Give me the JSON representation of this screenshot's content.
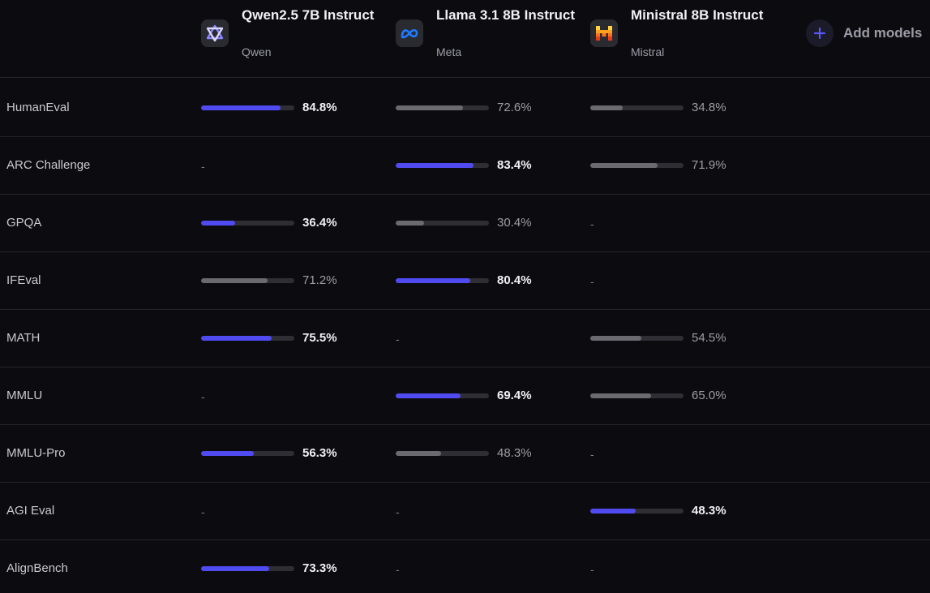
{
  "models": [
    {
      "name": "Qwen2.5 7B Instruct",
      "org": "Qwen",
      "logo_icon": "qwen-logo-icon"
    },
    {
      "name": "Llama 3.1 8B Instruct",
      "org": "Meta",
      "logo_icon": "meta-logo-icon"
    },
    {
      "name": "Ministral 8B Instruct",
      "org": "Mistral",
      "logo_icon": "mistral-logo-icon"
    }
  ],
  "add_models": {
    "label": "Add models",
    "icon": "plus-icon"
  },
  "colors": {
    "best_bar": "#4f4bf0",
    "normal_bar": "#6a6a70",
    "track": "#2e2e34"
  },
  "benchmarks": [
    {
      "name": "HumanEval",
      "scores": [
        {
          "value": 84.8,
          "label": "84.8%",
          "best": true
        },
        {
          "value": 72.6,
          "label": "72.6%",
          "best": false
        },
        {
          "value": 34.8,
          "label": "34.8%",
          "best": false
        }
      ]
    },
    {
      "name": "ARC Challenge",
      "scores": [
        null,
        {
          "value": 83.4,
          "label": "83.4%",
          "best": true
        },
        {
          "value": 71.9,
          "label": "71.9%",
          "best": false
        }
      ]
    },
    {
      "name": "GPQA",
      "scores": [
        {
          "value": 36.4,
          "label": "36.4%",
          "best": true
        },
        {
          "value": 30.4,
          "label": "30.4%",
          "best": false
        },
        null
      ]
    },
    {
      "name": "IFEval",
      "scores": [
        {
          "value": 71.2,
          "label": "71.2%",
          "best": false
        },
        {
          "value": 80.4,
          "label": "80.4%",
          "best": true
        },
        null
      ]
    },
    {
      "name": "MATH",
      "scores": [
        {
          "value": 75.5,
          "label": "75.5%",
          "best": true
        },
        null,
        {
          "value": 54.5,
          "label": "54.5%",
          "best": false
        }
      ]
    },
    {
      "name": "MMLU",
      "scores": [
        null,
        {
          "value": 69.4,
          "label": "69.4%",
          "best": true
        },
        {
          "value": 65.0,
          "label": "65.0%",
          "best": false
        }
      ]
    },
    {
      "name": "MMLU-Pro",
      "scores": [
        {
          "value": 56.3,
          "label": "56.3%",
          "best": true
        },
        {
          "value": 48.3,
          "label": "48.3%",
          "best": false
        },
        null
      ]
    },
    {
      "name": "AGI Eval",
      "scores": [
        null,
        null,
        {
          "value": 48.3,
          "label": "48.3%",
          "best": true
        }
      ]
    },
    {
      "name": "AlignBench",
      "scores": [
        {
          "value": 73.3,
          "label": "73.3%",
          "best": true
        },
        null,
        null
      ]
    }
  ],
  "empty_marker": "-"
}
